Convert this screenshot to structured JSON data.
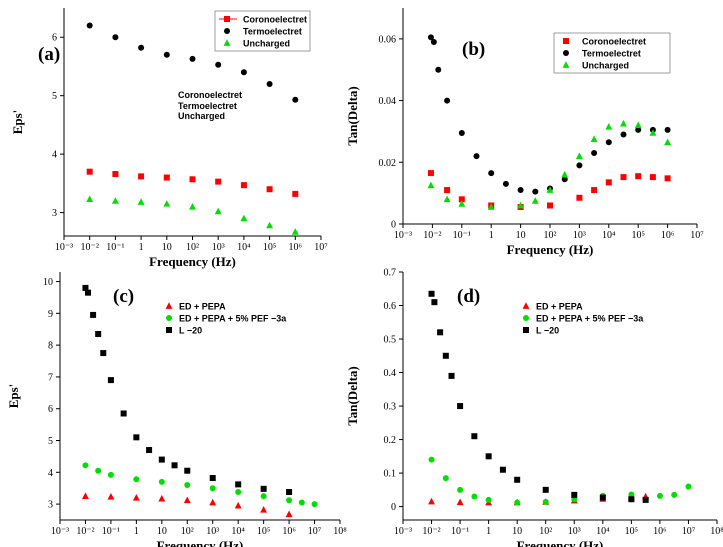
{
  "chart_data": [
    {
      "panel": "(a)",
      "type": "scatter",
      "xlabel": "Frequency (Hz)",
      "ylabel": "Eps'",
      "x_log_range": [
        -3,
        7
      ],
      "ylim": [
        2.6,
        6.5
      ],
      "yticks": [
        3,
        4,
        5,
        6
      ],
      "notes": [
        "Coronoelectret",
        "Termoelectret",
        "Uncharged"
      ],
      "series": [
        {
          "name": "Coronoelectret",
          "marker": "square",
          "color": "#ff0000",
          "x_log": [
            -2,
            -1,
            0,
            1,
            2,
            3,
            4,
            5,
            6
          ],
          "y": [
            3.7,
            3.66,
            3.62,
            3.6,
            3.57,
            3.53,
            3.47,
            3.4,
            3.32
          ]
        },
        {
          "name": "Termoelectret",
          "marker": "circle",
          "color": "#000000",
          "x_log": [
            -2,
            -1,
            0,
            1,
            2,
            3,
            4,
            5,
            6
          ],
          "y": [
            6.2,
            6.0,
            5.82,
            5.7,
            5.63,
            5.53,
            5.4,
            5.2,
            4.93
          ]
        },
        {
          "name": "Uncharged",
          "marker": "triangle",
          "color": "#00e000",
          "x_log": [
            -2,
            -1,
            0,
            1,
            2,
            3,
            4,
            5,
            6
          ],
          "y": [
            3.23,
            3.2,
            3.18,
            3.15,
            3.1,
            3.02,
            2.9,
            2.78,
            2.67
          ]
        }
      ]
    },
    {
      "panel": "(b)",
      "type": "scatter",
      "xlabel": "Frequency (Hz)",
      "ylabel": "Tan(Delta)",
      "x_log_range": [
        -3,
        7
      ],
      "ylim": [
        0,
        0.07
      ],
      "yticks": [
        0,
        0.02,
        0.04,
        0.06
      ],
      "series": [
        {
          "name": "Coronoelectret",
          "marker": "square",
          "color": "#ff0000",
          "x_log": [
            -2.05,
            -1.5,
            -1,
            0,
            1,
            2,
            3,
            3.5,
            4,
            4.5,
            5,
            5.5,
            6
          ],
          "y": [
            0.0165,
            0.011,
            0.008,
            0.006,
            0.0055,
            0.006,
            0.0085,
            0.011,
            0.0135,
            0.0152,
            0.0155,
            0.0152,
            0.0148
          ]
        },
        {
          "name": "Termoelectret",
          "marker": "circle",
          "color": "#000000",
          "x_log": [
            -2.05,
            -1.95,
            -1.8,
            -1.5,
            -1,
            -0.5,
            0,
            0.5,
            1,
            1.5,
            2,
            2.5,
            3,
            3.5,
            4,
            4.5,
            5,
            5.5,
            6
          ],
          "y": [
            0.0605,
            0.059,
            0.05,
            0.04,
            0.0295,
            0.022,
            0.0165,
            0.013,
            0.011,
            0.0105,
            0.0115,
            0.0145,
            0.019,
            0.023,
            0.0265,
            0.029,
            0.0305,
            0.0305,
            0.0305
          ]
        },
        {
          "name": "Uncharged",
          "marker": "triangle",
          "color": "#00e000",
          "x_log": [
            -2.05,
            -1.5,
            -1,
            0,
            1,
            1.5,
            2,
            2.5,
            3,
            3.5,
            4,
            4.5,
            5,
            5.5,
            6
          ],
          "y": [
            0.0125,
            0.008,
            0.0065,
            0.0055,
            0.006,
            0.0075,
            0.011,
            0.016,
            0.022,
            0.0275,
            0.0315,
            0.0325,
            0.032,
            0.0295,
            0.0265
          ]
        }
      ]
    },
    {
      "panel": "(c)",
      "type": "scatter",
      "xlabel": "Frequency (Hz)",
      "ylabel": "Eps'",
      "x_log_range": [
        -3,
        8
      ],
      "ylim": [
        2.5,
        10.3
      ],
      "yticks": [
        3,
        4,
        5,
        6,
        7,
        8,
        9,
        10
      ],
      "series": [
        {
          "name": "ED + PEPA",
          "marker": "triangle",
          "color": "#ff0000",
          "x_log": [
            -2,
            -1,
            0,
            1,
            2,
            3,
            4,
            5,
            6
          ],
          "y": [
            3.25,
            3.23,
            3.2,
            3.17,
            3.12,
            3.05,
            2.95,
            2.82,
            2.68
          ]
        },
        {
          "name": "ED + PEPA + 5% PEF −3a",
          "marker": "circle",
          "color": "#00e000",
          "x_log": [
            -2,
            -1.5,
            -1,
            0,
            1,
            2,
            3,
            4,
            5,
            6,
            6.5,
            7
          ],
          "y": [
            4.22,
            4.05,
            3.92,
            3.78,
            3.7,
            3.6,
            3.5,
            3.38,
            3.25,
            3.12,
            3.05,
            3.0
          ]
        },
        {
          "name": "L −20",
          "marker": "square",
          "color": "#000000",
          "x_log": [
            -2,
            -1.9,
            -1.7,
            -1.5,
            -1.3,
            -1,
            -0.5,
            0,
            0.5,
            1,
            1.5,
            2,
            3,
            4,
            5,
            6
          ],
          "y": [
            9.8,
            9.65,
            8.95,
            8.35,
            7.75,
            6.9,
            5.85,
            5.1,
            4.7,
            4.4,
            4.22,
            4.05,
            3.82,
            3.62,
            3.48,
            3.38
          ]
        }
      ]
    },
    {
      "panel": "(d)",
      "type": "scatter",
      "xlabel": "Frequency (Hz)",
      "ylabel": "Tan(Delta)",
      "x_log_range": [
        -3,
        8
      ],
      "ylim": [
        -0.04,
        0.7
      ],
      "yticks": [
        0,
        0.1,
        0.2,
        0.3,
        0.4,
        0.5,
        0.6,
        0.7
      ],
      "series": [
        {
          "name": "ED + PEPA",
          "marker": "triangle",
          "color": "#ff0000",
          "x_log": [
            -2,
            -1,
            0,
            1,
            2,
            3,
            4,
            5,
            5.5
          ],
          "y": [
            0.015,
            0.013,
            0.012,
            0.012,
            0.014,
            0.018,
            0.023,
            0.027,
            0.03
          ]
        },
        {
          "name": "ED + PEPA + 5% PEF −3a",
          "marker": "circle",
          "color": "#00e000",
          "x_log": [
            -2,
            -1.5,
            -1,
            -0.5,
            0,
            1,
            2,
            3,
            4,
            5,
            6,
            6.5,
            7
          ],
          "y": [
            0.14,
            0.085,
            0.05,
            0.03,
            0.02,
            0.012,
            0.014,
            0.022,
            0.032,
            0.036,
            0.032,
            0.035,
            0.06
          ]
        },
        {
          "name": "L −20",
          "marker": "square",
          "color": "#000000",
          "x_log": [
            -2,
            -1.9,
            -1.7,
            -1.5,
            -1.3,
            -1,
            -0.5,
            0,
            0.5,
            1,
            2,
            3,
            4,
            5,
            5.5
          ],
          "y": [
            0.635,
            0.61,
            0.52,
            0.45,
            0.39,
            0.3,
            0.21,
            0.15,
            0.11,
            0.08,
            0.05,
            0.035,
            0.027,
            0.022,
            0.02
          ]
        }
      ]
    }
  ]
}
